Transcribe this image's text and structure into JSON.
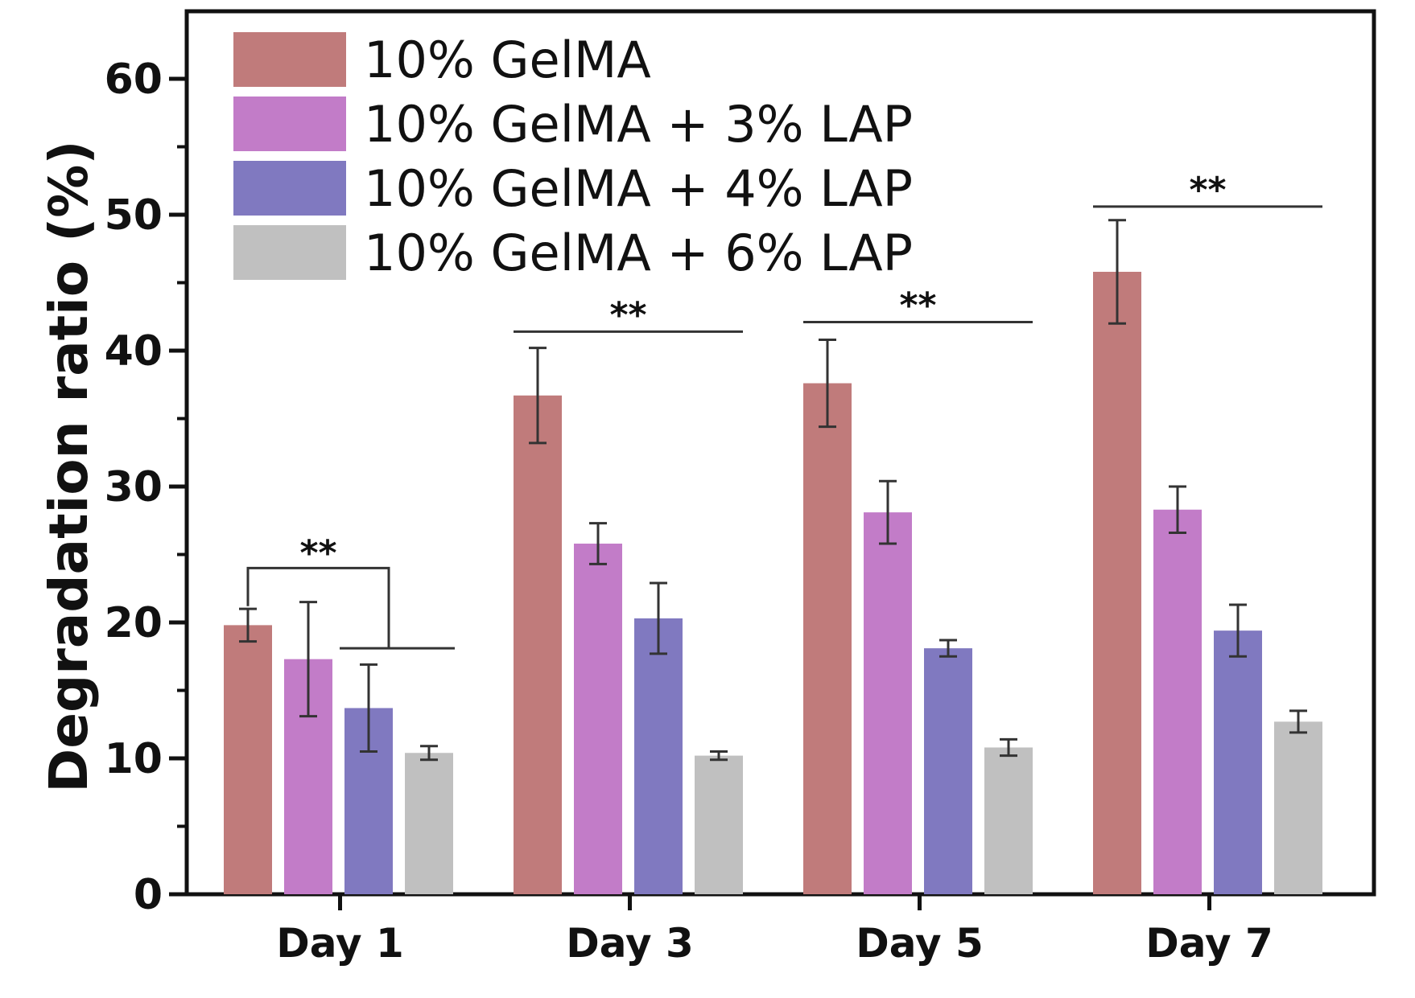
{
  "chart_data": {
    "type": "bar",
    "title": "",
    "xlabel": "",
    "ylabel": "Degradation ratio (%)",
    "ylim": [
      0,
      65
    ],
    "yticks": [
      0,
      10,
      20,
      30,
      40,
      50,
      60
    ],
    "categories": [
      "Day 1",
      "Day 3",
      "Day 5",
      "Day 7"
    ],
    "legend_position": "top-left",
    "series": [
      {
        "name": "10% GelMA",
        "color": "#c07b7b",
        "values": [
          19.8,
          36.7,
          37.6,
          45.8
        ],
        "errors": [
          1.2,
          3.5,
          3.2,
          3.8
        ]
      },
      {
        "name": "10% GelMA + 3% LAP",
        "color": "#c27cc8",
        "values": [
          17.3,
          25.8,
          28.1,
          28.3
        ],
        "errors": [
          4.2,
          1.5,
          2.3,
          1.7
        ]
      },
      {
        "name": "10% GelMA + 4% LAP",
        "color": "#8079c0",
        "values": [
          13.7,
          20.3,
          18.1,
          19.4
        ],
        "errors": [
          3.2,
          2.6,
          0.6,
          1.9
        ]
      },
      {
        "name": "10% GelMA + 6% LAP",
        "color": "#c0c0c0",
        "values": [
          10.4,
          10.2,
          10.8,
          12.7
        ],
        "errors": [
          0.5,
          0.3,
          0.6,
          0.8
        ]
      }
    ],
    "significance": [
      {
        "label": "**",
        "category": "Day 1"
      },
      {
        "label": "**",
        "category": "Day 3"
      },
      {
        "label": "**",
        "category": "Day 5"
      },
      {
        "label": "**",
        "category": "Day 7"
      }
    ]
  }
}
